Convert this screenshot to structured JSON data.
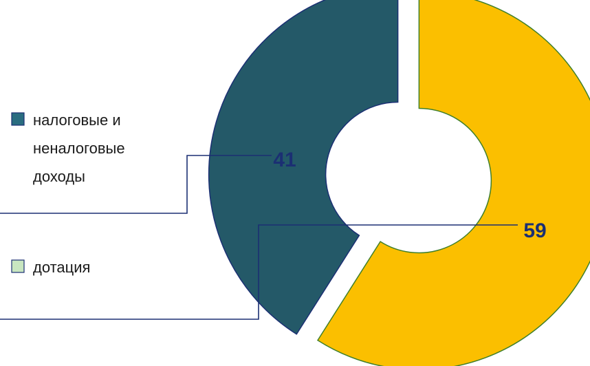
{
  "chart_data": {
    "type": "pie",
    "variant": "donut",
    "slices": [
      {
        "name_lines": [
          "налоговые и",
          "неналоговые",
          "доходы"
        ],
        "value": 41,
        "label": "41",
        "color": "#245968",
        "legend_swatch_color": "#2a6d80"
      },
      {
        "name_lines": [
          "дотация"
        ],
        "value": 59,
        "label": "59",
        "color": "#fbbf00",
        "legend_swatch_color": "#c8e6c0"
      }
    ],
    "legend_position": "left",
    "leader_line_color": "#1b2f73"
  }
}
